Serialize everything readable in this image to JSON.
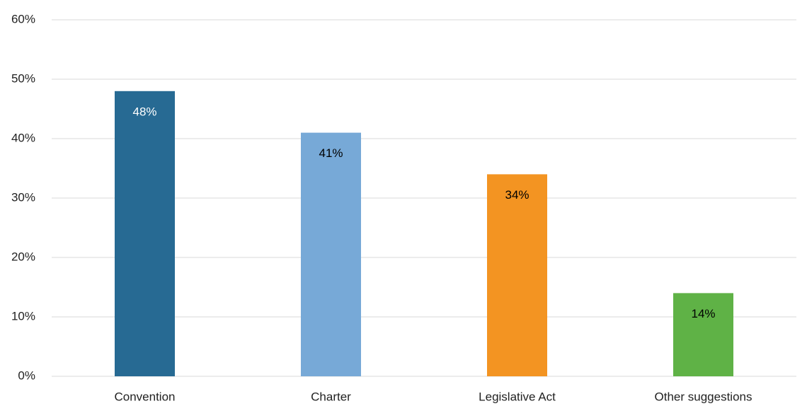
{
  "chart_data": {
    "type": "bar",
    "categories": [
      "Convention",
      "Charter",
      "Legislative Act",
      "Other suggestions"
    ],
    "values": [
      48,
      41,
      34,
      14
    ],
    "value_labels": [
      "48%",
      "41%",
      "34%",
      "14%"
    ],
    "colors": [
      "#276a93",
      "#77a9d7",
      "#f39422",
      "#5fb246"
    ],
    "value_label_colors": [
      "#ffffff",
      "#000000",
      "#000000",
      "#000000"
    ],
    "ylim": [
      0,
      60
    ],
    "yticks": [
      {
        "value": 0,
        "label": "0%"
      },
      {
        "value": 10,
        "label": "10%"
      },
      {
        "value": 20,
        "label": "20%"
      },
      {
        "value": 30,
        "label": "30%"
      },
      {
        "value": 40,
        "label": "40%"
      },
      {
        "value": 50,
        "label": "50%"
      },
      {
        "value": 60,
        "label": "60%"
      }
    ],
    "grid": true
  }
}
